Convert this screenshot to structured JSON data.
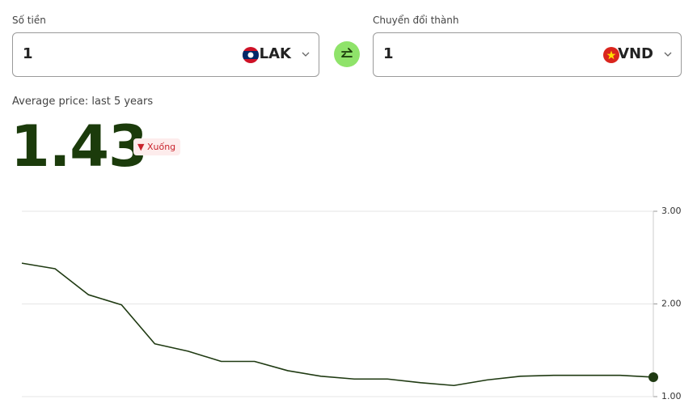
{
  "from": {
    "label": "Số tiền",
    "amount": 1,
    "currency": "LAK"
  },
  "to": {
    "label": "Chuyển đổi thành",
    "amount": 1,
    "currency": "VND"
  },
  "summary": {
    "caption": "Average price: last 5 years",
    "value": 1.43,
    "trend": "Xuống"
  },
  "chart_data": {
    "type": "line",
    "series": [
      {
        "color": "#1f3a12",
        "values": [
          2.44,
          2.38,
          2.1,
          1.99,
          1.57,
          1.49,
          1.38,
          1.38,
          1.28,
          1.22,
          1.19,
          1.19,
          1.15,
          1.12,
          1.18,
          1.22,
          1.23,
          1.23,
          1.23,
          1.21
        ]
      }
    ],
    "ylim": [
      1,
      3
    ],
    "yticks": [
      {
        "value": 1,
        "label": "1.00"
      },
      {
        "value": 2,
        "label": "2.00"
      },
      {
        "value": 3,
        "label": "3.00"
      }
    ],
    "grid": true
  }
}
